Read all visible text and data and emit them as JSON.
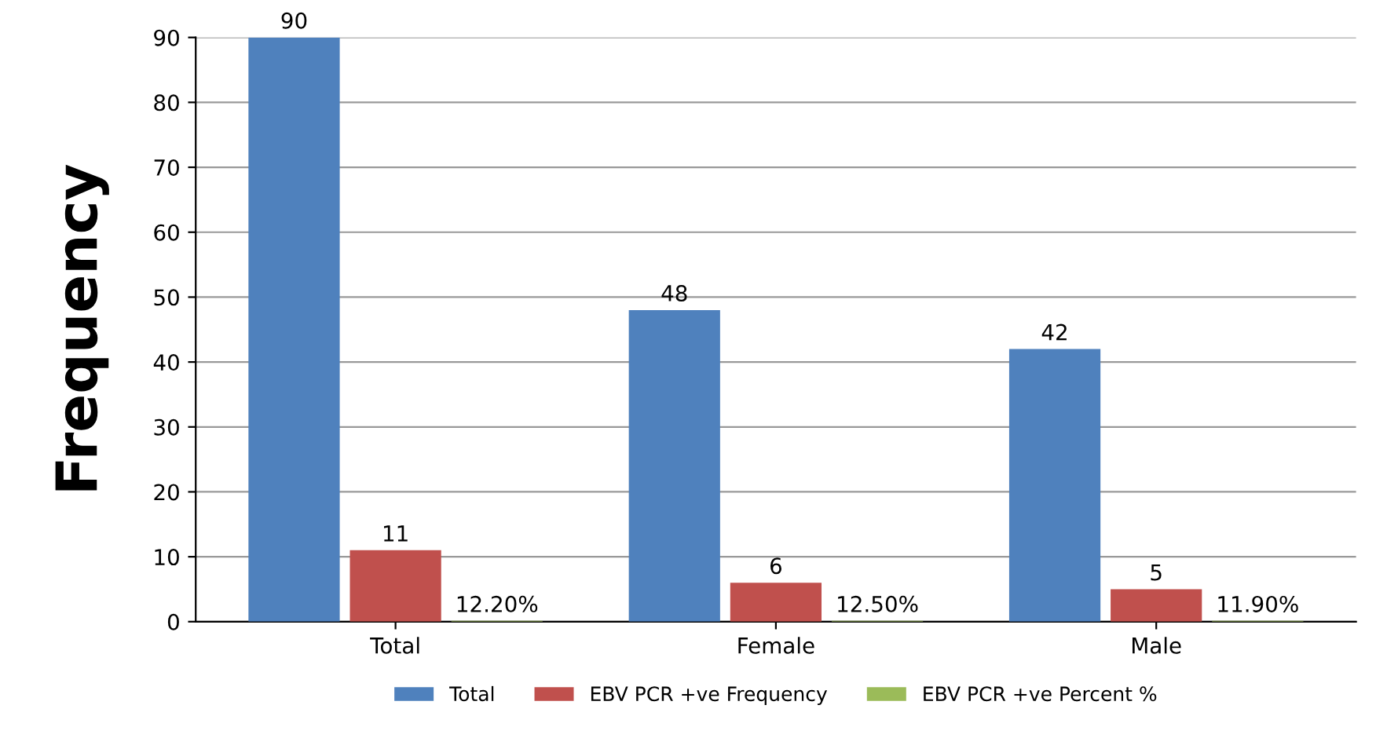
{
  "chart_data": {
    "type": "bar",
    "ylabel": "Frequency",
    "categories": [
      "Total",
      "Female",
      "Male"
    ],
    "series": [
      {
        "name": "Total",
        "color": "#4f81bd",
        "values": [
          90,
          48,
          42
        ],
        "value_labels": [
          "90",
          "48",
          "42"
        ]
      },
      {
        "name": "EBV PCR +ve Frequency",
        "color": "#c0504d",
        "values": [
          11,
          6,
          5
        ],
        "value_labels": [
          "11",
          "6",
          "5"
        ]
      },
      {
        "name": "EBV PCR +ve Percent %",
        "color": "#9bbb59",
        "values": [
          0.122,
          0.125,
          0.119
        ],
        "value_labels": [
          "12.20%",
          "12.50%",
          "11.90%"
        ]
      }
    ],
    "ylim": [
      0,
      90
    ],
    "yticks": [
      0,
      10,
      20,
      30,
      40,
      50,
      60,
      70,
      80,
      90
    ],
    "grid": "y",
    "legend": "bottom"
  }
}
